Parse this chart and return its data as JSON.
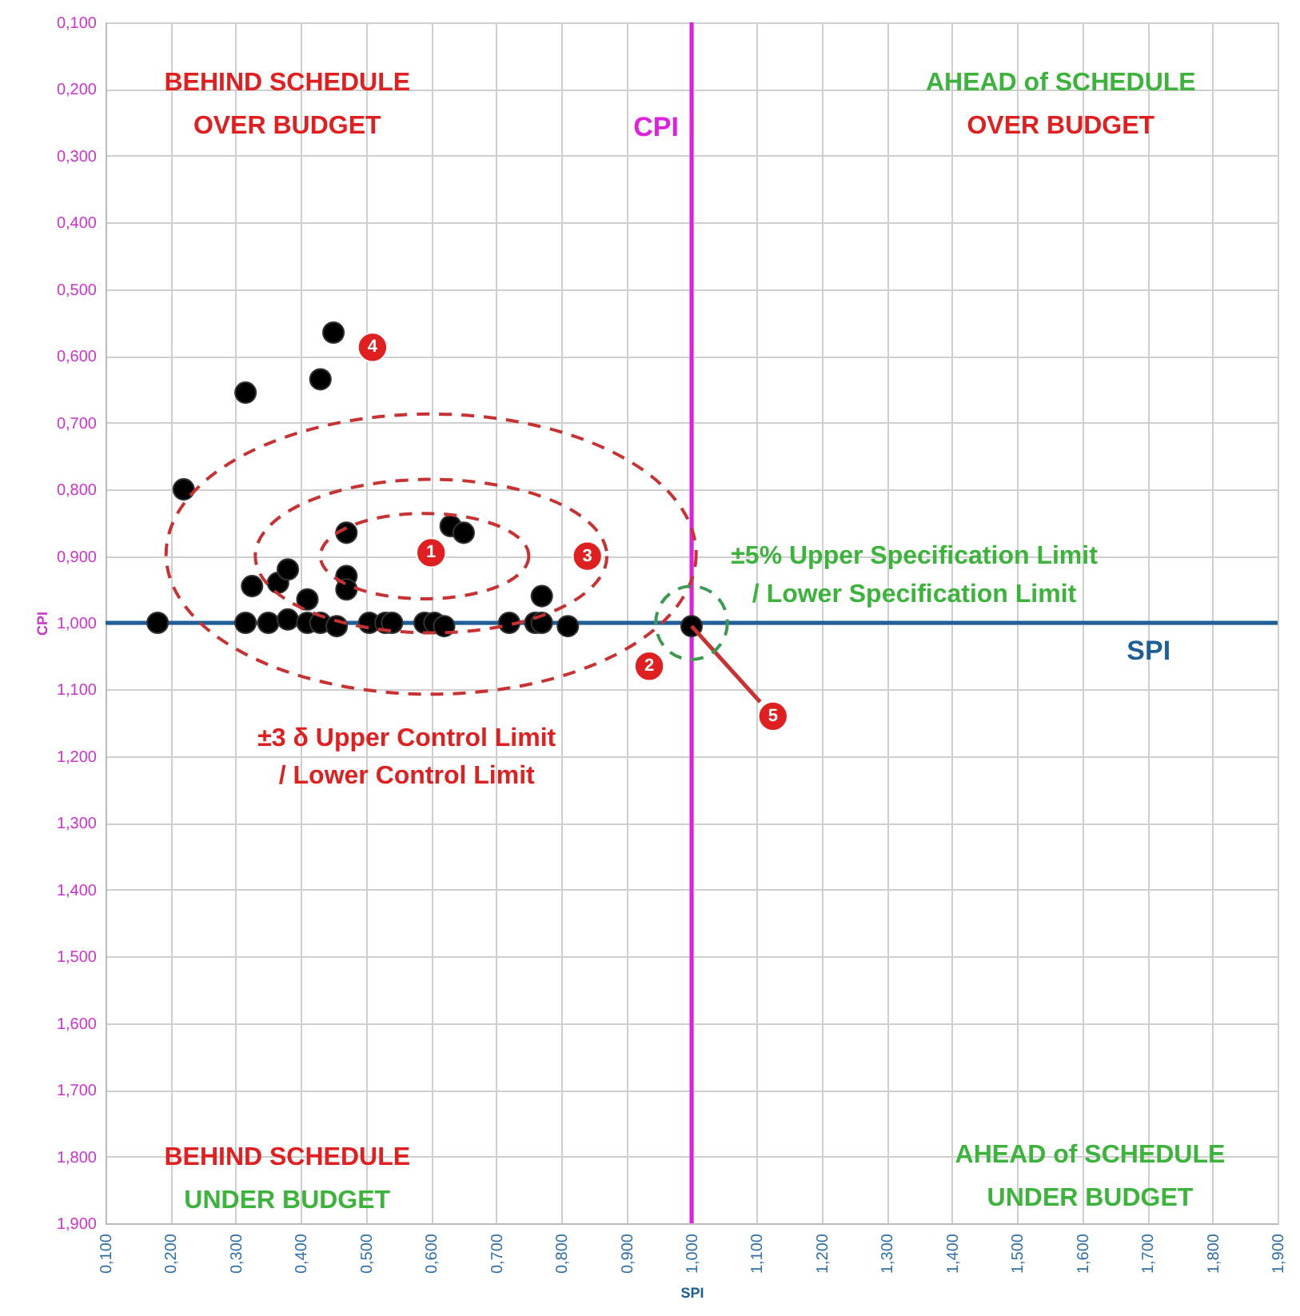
{
  "chart_data": {
    "type": "scatter",
    "xlabel": "SPI",
    "ylabel": "CPI",
    "xlim": [
      0.1,
      1.9
    ],
    "ylim": [
      1.9,
      0.1
    ],
    "xticks": [
      {
        "value": 0.1,
        "label": "0,100"
      },
      {
        "value": 0.2,
        "label": "0,200"
      },
      {
        "value": 0.3,
        "label": "0,300"
      },
      {
        "value": 0.4,
        "label": "0,400"
      },
      {
        "value": 0.5,
        "label": "0,500"
      },
      {
        "value": 0.6,
        "label": "0,600"
      },
      {
        "value": 0.7,
        "label": "0,700"
      },
      {
        "value": 0.8,
        "label": "0,800"
      },
      {
        "value": 0.9,
        "label": "0,900"
      },
      {
        "value": 1.0,
        "label": "1,000"
      },
      {
        "value": 1.1,
        "label": "1,100"
      },
      {
        "value": 1.2,
        "label": "1,200"
      },
      {
        "value": 1.3,
        "label": "1,300"
      },
      {
        "value": 1.4,
        "label": "1,400"
      },
      {
        "value": 1.5,
        "label": "1,500"
      },
      {
        "value": 1.6,
        "label": "1,600"
      },
      {
        "value": 1.7,
        "label": "1,700"
      },
      {
        "value": 1.8,
        "label": "1,800"
      },
      {
        "value": 1.9,
        "label": "1,900"
      }
    ],
    "yticks": [
      {
        "value": 0.1,
        "label": "0,100"
      },
      {
        "value": 0.2,
        "label": "0,200"
      },
      {
        "value": 0.3,
        "label": "0,300"
      },
      {
        "value": 0.4,
        "label": "0,400"
      },
      {
        "value": 0.5,
        "label": "0,500"
      },
      {
        "value": 0.6,
        "label": "0,600"
      },
      {
        "value": 0.7,
        "label": "0,700"
      },
      {
        "value": 0.8,
        "label": "0,800"
      },
      {
        "value": 0.9,
        "label": "0,900"
      },
      {
        "value": 1.0,
        "label": "1,000"
      },
      {
        "value": 1.1,
        "label": "1,100"
      },
      {
        "value": 1.2,
        "label": "1,200"
      },
      {
        "value": 1.3,
        "label": "1,300"
      },
      {
        "value": 1.4,
        "label": "1,400"
      },
      {
        "value": 1.5,
        "label": "1,500"
      },
      {
        "value": 1.6,
        "label": "1,600"
      },
      {
        "value": 1.7,
        "label": "1,700"
      },
      {
        "value": 1.8,
        "label": "1,800"
      },
      {
        "value": 1.9,
        "label": "1,900"
      }
    ],
    "grid": true,
    "marker": "circle",
    "series": [
      {
        "color": "#000000",
        "x": [
          0.18,
          0.22,
          0.315,
          0.43,
          0.45,
          0.47,
          0.63,
          0.65,
          0.325,
          0.365,
          0.38,
          0.41,
          0.47,
          0.47,
          0.77,
          0.315,
          0.35,
          0.38,
          0.41,
          0.43,
          0.455,
          0.505,
          0.53,
          0.54,
          0.59,
          0.605,
          0.62,
          0.72,
          0.76,
          0.77,
          0.81,
          1.0
        ],
        "values": [
          1.0,
          0.8,
          0.655,
          0.635,
          0.565,
          0.865,
          0.855,
          0.865,
          0.945,
          0.94,
          0.92,
          0.965,
          0.93,
          0.95,
          0.96,
          1.0,
          1.0,
          0.995,
          1.0,
          1.0,
          1.005,
          1.0,
          1.0,
          1.0,
          1.0,
          1.0,
          1.005,
          1.0,
          1.0,
          1.0,
          1.005,
          1.005
        ]
      }
    ],
    "ref_lines": [
      {
        "axis": "y",
        "value": 1.0,
        "label": "SPI",
        "color": "#1f5f99"
      },
      {
        "axis": "x",
        "value": 1.0,
        "label": "CPI",
        "color": "#e020e0"
      }
    ],
    "annotations": [
      {
        "text": "1",
        "x": 0.6,
        "y": 0.895
      },
      {
        "text": "2",
        "x": 0.935,
        "y": 1.065
      },
      {
        "text": "3",
        "x": 0.84,
        "y": 0.9
      },
      {
        "text": "4",
        "x": 0.51,
        "y": 0.587
      },
      {
        "text": "5",
        "x": 1.125,
        "y": 1.14
      },
      "BEHIND SCHEDULE",
      "OVER BUDGET",
      "AHEAD of SCHEDULE",
      "OVER BUDGET",
      "BEHIND SCHEDULE",
      "UNDER BUDGET",
      "AHEAD of SCHEDULE",
      "UNDER BUDGET",
      "±5% Upper Specification Limit",
      "/ Lower Specification Limit",
      "±3 δ Upper Control Limit",
      "/ Lower Control Limit"
    ]
  }
}
